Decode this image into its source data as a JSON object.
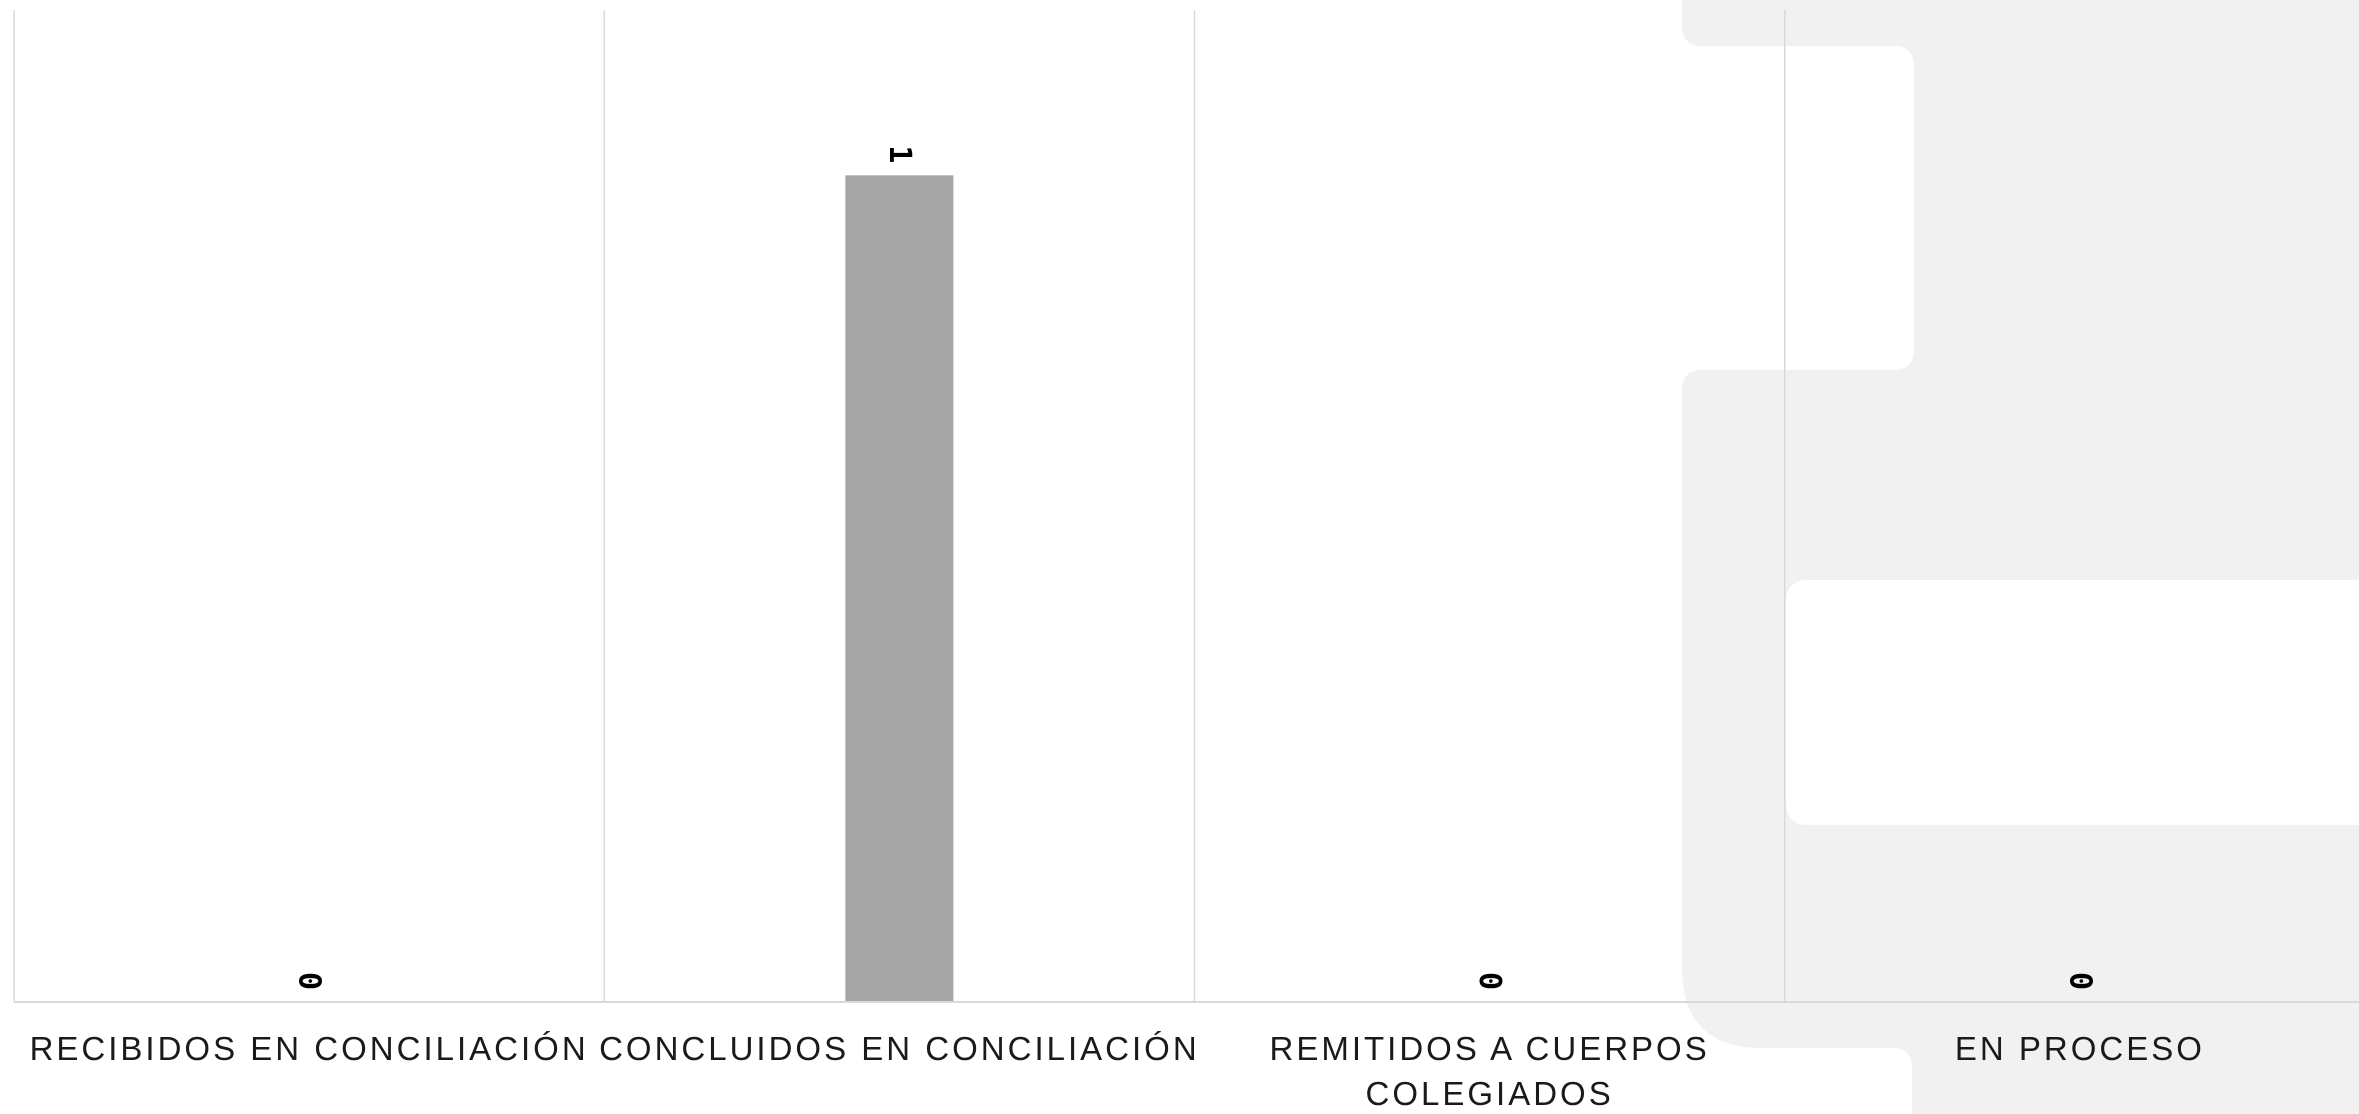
{
  "chart_data": {
    "type": "bar",
    "categories": [
      "RECIBIDOS EN CONCILIACIÓN",
      "CONCLUIDOS EN CONCILIACIÓN",
      "REMITIDOS A CUERPOS COLEGIADOS",
      "EN PROCESO"
    ],
    "category_lines": [
      [
        "RECIBIDOS EN CONCILIACIÓN"
      ],
      [
        "CONCLUIDOS EN CONCILIACIÓN"
      ],
      [
        "REMITIDOS A CUERPOS",
        "COLEGIADOS"
      ],
      [
        "EN PROCESO"
      ]
    ],
    "values": [
      0,
      1,
      0,
      0
    ],
    "ylim": [
      0,
      1.2
    ],
    "bar_color": "#a5a5a5",
    "grid_color": "#d9d9d9",
    "grid": true,
    "legend": false
  },
  "background": {
    "watermark_color": "#f0f1f0"
  }
}
